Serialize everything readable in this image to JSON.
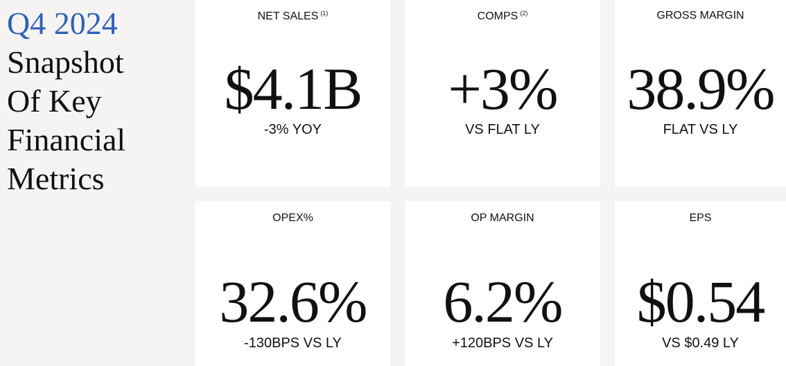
{
  "header": {
    "period": "Q4 2024",
    "title_lines": [
      "Snapshot",
      "Of Key",
      "Financial",
      "Metrics"
    ]
  },
  "cards": [
    {
      "label": "NET SALES",
      "note": "(1)",
      "value": "$4.1B",
      "sub": "-3% YOY"
    },
    {
      "label": "COMPS",
      "note": "(2)",
      "value": "+3%",
      "sub": "VS FLAT LY"
    },
    {
      "label": "GROSS MARGIN",
      "value": "38.9%",
      "sub": "FLAT VS LY"
    },
    {
      "label": "OPEX%",
      "value": "32.6%",
      "sub": "-130BPS VS LY"
    },
    {
      "label": "OP MARGIN",
      "value": "6.2%",
      "sub": "+120BPS VS LY"
    },
    {
      "label": "EPS",
      "value": "$0.54",
      "sub": "VS $0.49 LY"
    }
  ]
}
